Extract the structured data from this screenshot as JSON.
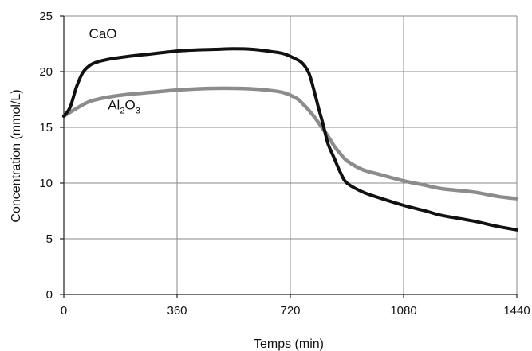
{
  "chart_data": {
    "type": "line",
    "title": "",
    "xlabel": "Temps (min)",
    "ylabel": "Concentration (mmol/L)",
    "xlim": [
      0,
      1440
    ],
    "ylim": [
      0,
      25
    ],
    "xticks": [
      0,
      360,
      720,
      1080,
      1440
    ],
    "yticks": [
      0,
      5,
      10,
      15,
      20,
      25
    ],
    "grid": true,
    "legend": "none",
    "series": [
      {
        "name": "CaO",
        "label_main": "CaO",
        "label_sub": "",
        "label_tail": "",
        "label_at": [
          80,
          23
        ],
        "color": "#111111",
        "width": 4,
        "x": [
          0,
          20,
          40,
          60,
          80,
          100,
          140,
          200,
          280,
          360,
          420,
          480,
          540,
          600,
          660,
          700,
          740,
          760,
          780,
          800,
          810,
          820,
          830,
          840,
          860,
          880,
          900,
          950,
          1000,
          1080,
          1150,
          1200,
          1300,
          1380,
          1440
        ],
        "y": [
          16,
          16.8,
          18.6,
          19.9,
          20.5,
          20.8,
          21.1,
          21.35,
          21.6,
          21.85,
          21.95,
          22.0,
          22.05,
          22.0,
          21.8,
          21.6,
          21.1,
          20.7,
          19.8,
          17.8,
          16.7,
          15.7,
          14.6,
          13.5,
          12.2,
          10.9,
          10.0,
          9.2,
          8.7,
          8.0,
          7.5,
          7.1,
          6.6,
          6.1,
          5.8
        ]
      },
      {
        "name": "Al2O3",
        "label_main": "Al",
        "label_sub": "2",
        "label_tail": "O",
        "label_tail_sub": "3",
        "label_at": [
          140,
          16.6
        ],
        "color": "#8c8c8c",
        "width": 4.5,
        "x": [
          0,
          40,
          80,
          120,
          160,
          200,
          280,
          360,
          420,
          480,
          540,
          600,
          660,
          700,
          740,
          760,
          780,
          800,
          820,
          840,
          860,
          880,
          900,
          950,
          1000,
          1080,
          1150,
          1200,
          1300,
          1380,
          1440
        ],
        "y": [
          16,
          16.7,
          17.3,
          17.6,
          17.8,
          17.95,
          18.15,
          18.35,
          18.45,
          18.5,
          18.5,
          18.45,
          18.3,
          18.1,
          17.6,
          17.1,
          16.5,
          15.8,
          15.0,
          14.2,
          13.3,
          12.6,
          12.0,
          11.2,
          10.8,
          10.2,
          9.8,
          9.5,
          9.2,
          8.8,
          8.6
        ]
      }
    ]
  }
}
